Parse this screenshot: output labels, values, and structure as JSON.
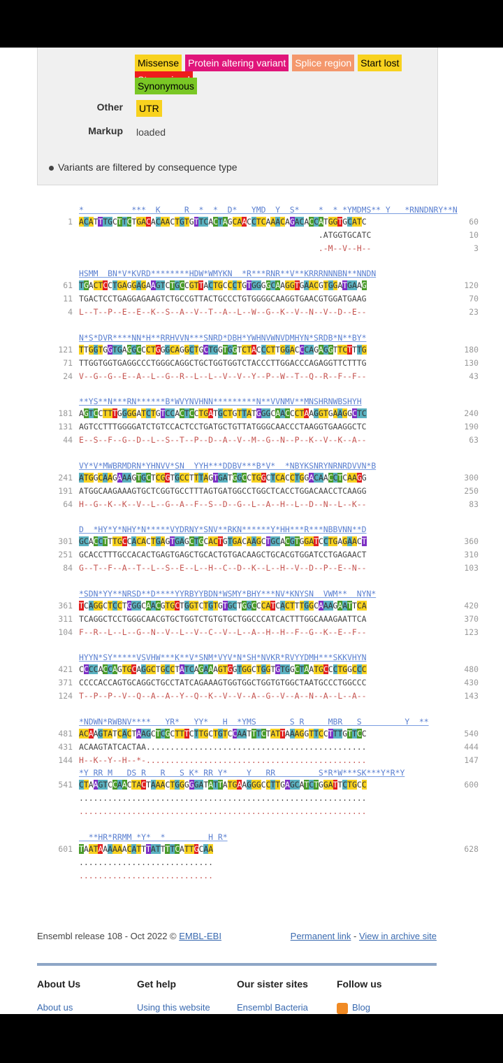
{
  "legend": {
    "badges_row1": [
      {
        "label": "Missense",
        "color": "#f8d21f",
        "text": "#000"
      },
      {
        "label": "Protein altering variant",
        "color": "#e0157a",
        "text": "#fff"
      },
      {
        "label": "Splice region",
        "color": "#f4976c",
        "text": "#fff"
      },
      {
        "label": "Start lost",
        "color": "#f8d21f",
        "text": "#000"
      },
      {
        "label": "Stop gained",
        "color": "#ee1c1c",
        "text": "#fff"
      }
    ],
    "badges_row2": [
      {
        "label": "Synonymous",
        "color": "#7ac725",
        "text": "#000"
      }
    ],
    "other_label": "Other",
    "other_value": "UTR",
    "markup_label": "Markup",
    "markup_value": "loaded",
    "note": "Variants are filtered by consequence type"
  },
  "sequence": [
    {
      "var": "*          ***  K     R  *  *  D*   YMD  Y  S*    *  * *YMDMS** Y   *RNNDNRY**N",
      "n1": "1",
      "c1": "60",
      "main": "ACATTTGCTTCTGACACAACTGTGTTCACTAGCAACCTCAAACAGACACCATGGTGCATC",
      "n2": "",
      "c2": "10",
      "s2": "                                                  .ATGGTGCATC",
      "n3": "",
      "c3": "3",
      "s3": "                                                  .-M--V--H--"
    },
    {
      "var": "HSMM  BN*V*KVRD********HDW*WMYKN  *R***RNR**V**KRRRNNNBN**NNDN",
      "n1": "61",
      "c1": "120",
      "main": "TGACTCCTGAGGAGAAGTCTGCCGTTACTGCCCTGTGGGGCAAGGTGAACGTGGATGAAG",
      "n2": "11",
      "c2": "70",
      "s2": "TGACTCCTGAGGAGAAGTCTGCCGTTACTGCCCTGTGGGGCAAGGTGAACGTGGATGAAG",
      "n3": "4",
      "c3": "23",
      "s3": "L--T--P--E--E--K--S--A--V--T--A--L--W--G--K--V--N--V--D--E--"
    },
    {
      "var": "N*S*DVR****NN*H**RRHVVN***SNRD*DBH*YWHNVWNVDMHYN*SRDB*N**BY*",
      "n1": "121",
      "c1": "180",
      "main": "TTGGTGGTGAGGCCCTGGGCAGGCTGCTGGTGGTCTACCCTTGGACCCAGAGGTTCTTTG",
      "n2": "71",
      "c2": "130",
      "s2": "TTGGTGGTGAGGCCCTGGGCAGGCTGCTGGTGGTCTACCCTTGGACCCAGAGGTTCTTTG",
      "n3": "24",
      "c3": "43",
      "s3": "V--G--G--E--A--L--G--R--L--L--V--V--Y--P--W--T--Q--R--F--F--"
    },
    {
      "var": "**YS**N***RN******B*WVYNVHNN*********N**VVNMV**MNSHRNWBSHYH",
      "n1": "181",
      "c1": "240",
      "main": "AGTCCTTTGGGGATCTGTCCACTCCTGATGCTGTTATGGGCAACCCTAAGGTGAAGGCTC",
      "n2": "131",
      "c2": "190",
      "s2": "AGTCCTTTGGGGATCTGTCCACTCCTGATGCTGTTATGGGCAACCCTAAGGTGAAGGCTC",
      "n3": "44",
      "c3": "63",
      "s3": "E--S--F--G--D--L--S--T--P--D--A--V--M--G--N--P--K--V--K--A--"
    },
    {
      "var": "VY*V*MWBRMDRN*YHNVV*SN  YYH***DDBV***B*V*  *NBYKSNRYNRNRDVVN*B",
      "n1": "241",
      "c1": "300",
      "main": "ATGGCAAGAAAGTGCTCGGTGCCTTTAGTGATGGCCTGGCTCACCTGGACAACCTCAAGG",
      "n2": "191",
      "c2": "250",
      "s2": "ATGGCAAGAAAGTGCTCGGTGCCTTTAGTGATGGCCTGGCTCACCTGGACAACCTCAAGG",
      "n3": "64",
      "c3": "83",
      "s3": "H--G--K--K--V--L--G--A--F--S--D--G--L--A--H--L--D--N--L--K--"
    },
    {
      "var": "D  *HY*Y*NHY*N*****VYDRNY*SNV**RKN******Y*HH***R***NBBVNN**D",
      "n1": "301",
      "c1": "360",
      "main": "GCACCTTTGCCACACTGAGTGAGCTGCACTGTGACAAGCTGCACGTGGATCCTGAGAACT",
      "n2": "251",
      "c2": "310",
      "s2": "GCACCTTTGCCACACTGAGTGAGCTGCACTGTGACAAGCTGCACGTGGATCCTGAGAACT",
      "n3": "84",
      "c3": "103",
      "s3": "G--T--F--A--T--L--S--E--L--H--C--D--K--L--H--V--D--P--E--N--"
    },
    {
      "var": "*SDN*YY**NRSD**D****YYRBYYBDN*WSMY*BHY***NV*KNYSN  VWM**  NYN*",
      "n1": "361",
      "c1": "420",
      "main": "TCAGGCTCCTGGGCAACGTGCTGGTCTGTGTGCTGGCCCATCACTTTGGCAAAGAATTCA",
      "n2": "311",
      "c2": "370",
      "s2": "TCAGGCTCCTGGGCAACGTGCTGGTCTGTGTGCTGGCCCATCACTTTGGCAAAGAATTCA",
      "n3": "104",
      "c3": "123",
      "s3": "F--R--L--L--G--N--V--L--V--C--V--L--A--H--H--F--G--K--E--F--"
    },
    {
      "var": "HYYN*SY*****VSVHW***K**V*SNM*VYV*N*SH*NVKR*RVYYDMH***SKKVHYN",
      "n1": "421",
      "c1": "480",
      "main": "CCCCACCAGTGCAGGCTGCCTATCAGAAAGTGGTGGCTGGTGTGGCTAATGCCCTGGCCC",
      "n2": "371",
      "c2": "430",
      "s2": "CCCCACCAGTGCAGGCTGCCTATCAGAAAGTGGTGGCTGGTGTGGCTAATGCCCTGGCCC",
      "n3": "124",
      "c3": "143",
      "s3": "T--P--P--V--Q--A--A--Y--Q--K--V--V--A--G--V--A--N--A--L--A--"
    },
    {
      "var": "*NDWN*RWBNV****   YR*   YY*   H  *YMS       S R     MBR   S         Y  **",
      "n1": "481",
      "c1": "540",
      "main": "ACAAGTATCACTAAGCTCGCTTTCTTGCTGTCCAATTTCTATTAAAGGTTCCTTTGTTCC",
      "n2": "431",
      "c2": "444",
      "s2": "ACAAGTATCACTAA..............................................",
      "n3": "144",
      "c3": "147",
      "s3": "H--K--Y--H--*-.............................................."
    },
    {
      "var": "*Y RR M   DS R   R   S K* RR Y*    Y   RR         S*R*W***SK***Y*R*Y",
      "n1": "541",
      "c1": "600",
      "main": "CTAAGTCCAACTACTAAACTGGGGGATATTATGAAGGGCCTTGAGCATCTGGATTCTGCC",
      "n2": "",
      "c2": "",
      "s2": "............................................................",
      "n3": "",
      "c3": "",
      "s3": "............................................................"
    },
    {
      "var": "  **HR*RRMM *Y*  *         H R*",
      "n1": "601",
      "c1": "628",
      "main": "TAATAAAAAACATTTATTTTCATTGCAA",
      "n2": "",
      "c2": "",
      "s2": "............................",
      "n3": "",
      "c3": "",
      "s3": "............................"
    }
  ],
  "footer": {
    "release": "Ensembl release 108 - Oct 2022 © ",
    "ebi": "EMBL-EBI",
    "perm": "Permanent link",
    "sep": " - ",
    "archive": "View in archive site",
    "cols": [
      {
        "head": "About Us",
        "link": "About us"
      },
      {
        "head": "Get help",
        "link": "Using this website"
      },
      {
        "head": "Our sister sites",
        "link": "Ensembl Bacteria"
      },
      {
        "head": "Follow us",
        "link": "Blog"
      }
    ]
  }
}
